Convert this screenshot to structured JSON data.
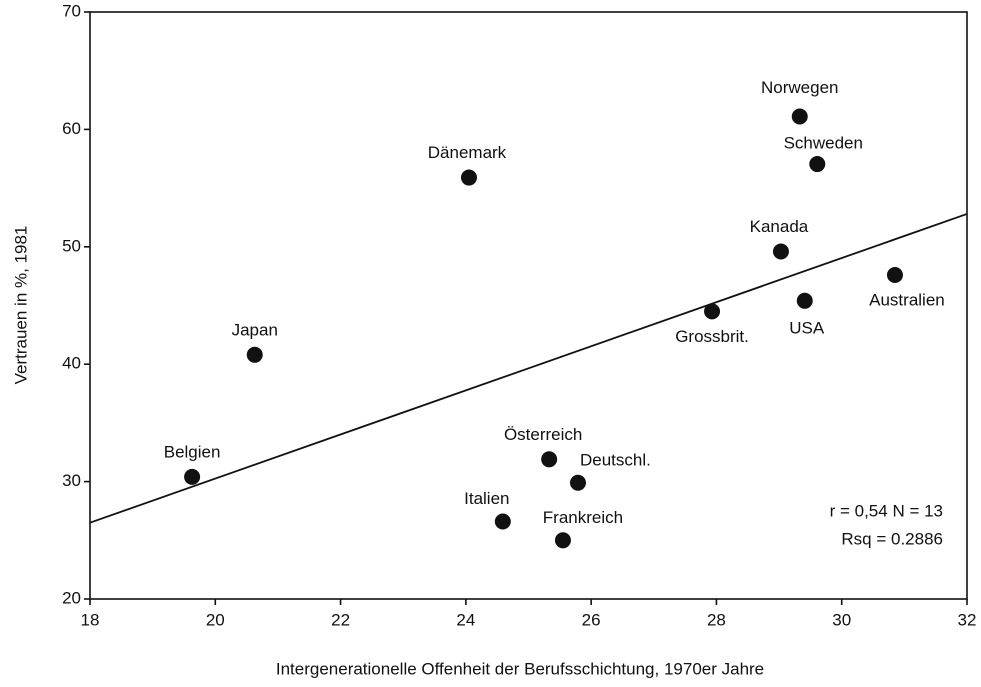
{
  "chart_data": {
    "type": "scatter",
    "xlabel": "Intergenerationelle Offenheit der Berufsschichtung, 1970er Jahre",
    "ylabel": "Vertrauen in %, 1981",
    "labels": [
      "Norwegen",
      "Schweden",
      "Dänemark",
      "Kanada",
      "Australien",
      "Grossbrit.",
      "USA",
      "Japan",
      "Belgien",
      "Österreich",
      "Deutschl.",
      "Italien",
      "Frankreich"
    ],
    "x": [
      29.33,
      29.61,
      24.05,
      29.03,
      30.85,
      27.93,
      29.41,
      20.63,
      19.63,
      25.33,
      25.79,
      24.59,
      25.55
    ],
    "values": [
      61.1,
      57.05,
      55.9,
      49.6,
      47.6,
      44.5,
      45.4,
      40.8,
      30.4,
      31.9,
      29.9,
      26.6,
      25.0
    ],
    "color": "#111111",
    "trendline": {
      "x": [
        18,
        32
      ],
      "y": [
        26.5,
        52.8
      ]
    },
    "annotations": [
      "r = 0,54  N = 13",
      "Rsq = 0.2886"
    ],
    "xlim": [
      18,
      32
    ],
    "xticks": [
      18,
      20,
      22,
      24,
      26,
      28,
      30,
      32
    ],
    "ylim": [
      20,
      70
    ],
    "yticks": [
      20,
      30,
      40,
      50,
      60,
      70
    ]
  }
}
